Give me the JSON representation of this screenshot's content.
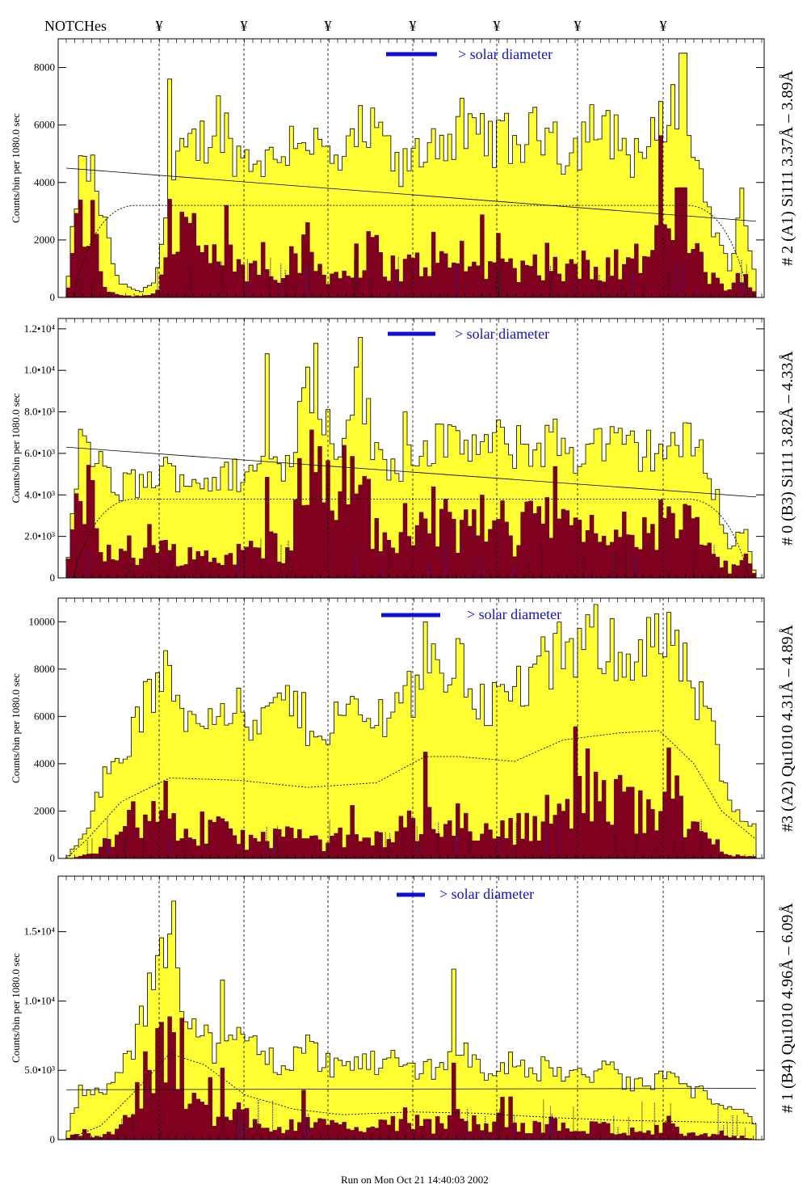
{
  "figure": {
    "notches_label": "NOTCHes",
    "notch_symbol": "¥",
    "footer": "Run on Mon Oct 21 14:40:03 2002",
    "colors": {
      "outer_fill": "#ffff33",
      "inner_fill": "#800020",
      "solar_bar": "#1010d0",
      "axis": "#000000"
    }
  },
  "chart_data": [
    {
      "type": "bar",
      "label": "# 2 (A1) Si111  3.37Å – 3.89Å",
      "ylabel": "Counts/bin per  1080.0 sec",
      "solar_label": "> solar diameter",
      "ylim": [
        0,
        9000
      ],
      "yticks": [
        {
          "v": 0,
          "t": "0"
        },
        {
          "v": 2000,
          "t": "2000"
        },
        {
          "v": 4000,
          "t": "4000"
        },
        {
          "v": 6000,
          "t": "6000"
        },
        {
          "v": 8000,
          "t": "8000"
        }
      ],
      "outer_profile": [
        0,
        4400,
        4500,
        2500,
        600,
        300,
        200,
        700,
        3200,
        4800,
        5300,
        5500,
        6400,
        5200,
        4800,
        5000,
        4700,
        5100,
        5800,
        5600,
        5000,
        4600,
        4800,
        5700,
        5600,
        5500,
        4200,
        4800,
        5100,
        5800,
        5400,
        5900,
        5300,
        5400,
        5600,
        5300,
        5500,
        5700,
        6300,
        4900,
        5200,
        6200,
        5500,
        5800,
        5000,
        5100,
        5400,
        6400,
        6800,
        5600,
        3600,
        2000,
        900,
        3700,
        300
      ],
      "inner_profile": [
        0,
        2700,
        2600,
        400,
        100,
        50,
        50,
        200,
        1400,
        2700,
        1900,
        1200,
        1400,
        1300,
        900,
        1100,
        900,
        1200,
        1600,
        1300,
        1100,
        800,
        600,
        1400,
        1600,
        1300,
        900,
        1100,
        1200,
        1700,
        900,
        1500,
        1000,
        1300,
        1100,
        1000,
        1200,
        1100,
        1500,
        800,
        1000,
        1400,
        1000,
        1100,
        1200,
        1400,
        1700,
        2400,
        2900,
        2000,
        700,
        500,
        300,
        1200,
        0
      ],
      "peaks": [
        {
          "x": 0.151,
          "v": 7600
        },
        {
          "x": 0.602,
          "v": 6400
        },
        {
          "x": 0.894,
          "v": 8500
        }
      ],
      "dashed_level": 3200,
      "solid_line": [
        4500,
        2650
      ]
    },
    {
      "type": "bar",
      "label": "# 0 (B3) Si111  3.82Å – 4.33Å",
      "ylabel": "Counts/bin per  1080.0 sec",
      "solar_label": "> solar diameter",
      "ylim": [
        0,
        12500
      ],
      "yticks": [
        {
          "v": 0,
          "t": "0"
        },
        {
          "v": 2000,
          "t": "2.0•10³"
        },
        {
          "v": 4000,
          "t": "4.0•10³"
        },
        {
          "v": 6000,
          "t": "6.0•10³"
        },
        {
          "v": 8000,
          "t": "8.0•10³"
        },
        {
          "v": 10000,
          "t": "1.0•10⁴"
        },
        {
          "v": 12000,
          "t": "1.2•10⁴"
        }
      ],
      "outer_profile": [
        0,
        6200,
        6400,
        4800,
        4200,
        4600,
        4500,
        4900,
        5100,
        5000,
        4700,
        4800,
        4600,
        5000,
        4900,
        5300,
        5600,
        5400,
        7200,
        9600,
        8000,
        6400,
        7700,
        10400,
        6000,
        5800,
        5400,
        6300,
        6200,
        6600,
        6300,
        6500,
        6400,
        6200,
        6600,
        6100,
        6500,
        6200,
        6800,
        6300,
        5900,
        6400,
        6600,
        6200,
        6400,
        6000,
        6300,
        6200,
        6500,
        6400,
        5900,
        3800,
        1200,
        2600,
        0
      ],
      "inner_profile": [
        0,
        5100,
        4800,
        1400,
        900,
        1100,
        1200,
        1400,
        1300,
        1200,
        1000,
        1100,
        900,
        1200,
        1100,
        1400,
        1800,
        1500,
        3600,
        5700,
        4200,
        2800,
        4400,
        6800,
        2000,
        1700,
        1500,
        2400,
        2500,
        3300,
        2100,
        2500,
        2200,
        1900,
        2600,
        2000,
        2900,
        3700,
        4200,
        3100,
        1800,
        2200,
        2400,
        2000,
        2300,
        1900,
        2600,
        2400,
        2800,
        2300,
        1700,
        700,
        200,
        1000,
        0
      ],
      "peaks": [
        {
          "x": 0.292,
          "v": 10800
        },
        {
          "x": 0.362,
          "v": 11300
        },
        {
          "x": 0.49,
          "v": 8000
        }
      ],
      "dashed_level": 3800,
      "solid_line": [
        6300,
        3900
      ]
    },
    {
      "type": "bar",
      "label": "#3 (A2) Qu1010  4.31Å – 4.89Å",
      "ylabel": "Counts/bin per   1080.0 sec",
      "solar_label": "> solar diameter",
      "ylim": [
        0,
        11000
      ],
      "yticks": [
        {
          "v": 0,
          "t": "0"
        },
        {
          "v": 2000,
          "t": "2000"
        },
        {
          "v": 4000,
          "t": "4000"
        },
        {
          "v": 6000,
          "t": "6000"
        },
        {
          "v": 8000,
          "t": "8000"
        },
        {
          "v": 10000,
          "t": "10000"
        }
      ],
      "outer_profile": [
        0,
        800,
        1800,
        3400,
        4300,
        5000,
        6300,
        7200,
        7600,
        6500,
        5800,
        6200,
        6800,
        6600,
        5600,
        5400,
        6100,
        6800,
        6300,
        5700,
        5400,
        5900,
        6200,
        6000,
        5700,
        6300,
        6800,
        7200,
        7500,
        7900,
        8200,
        8000,
        7200,
        6400,
        6700,
        7000,
        7400,
        7800,
        8300,
        8600,
        8900,
        9100,
        9300,
        9000,
        8700,
        8900,
        9200,
        8800,
        8200,
        7300,
        6000,
        4500,
        2000,
        1600,
        1400
      ],
      "inner_profile": [
        0,
        50,
        200,
        700,
        1200,
        1500,
        1800,
        1600,
        1400,
        1100,
        900,
        1000,
        1200,
        1100,
        800,
        700,
        900,
        1100,
        900,
        700,
        600,
        800,
        900,
        800,
        700,
        1000,
        1200,
        1300,
        1400,
        1500,
        1700,
        1600,
        1300,
        1000,
        1100,
        1200,
        1400,
        1600,
        1900,
        2100,
        2300,
        2400,
        2600,
        2400,
        2200,
        2300,
        2500,
        2200,
        1800,
        1300,
        900,
        600,
        200,
        100,
        50
      ],
      "peaks": [
        {
          "x": 0.523,
          "v": 10000
        },
        {
          "x": 0.757,
          "v": 10300
        },
        {
          "x": 0.874,
          "v": 10400
        }
      ],
      "dashed_level": 3500,
      "dashed_curve": [
        [
          0.0,
          0
        ],
        [
          0.03,
          800
        ],
        [
          0.08,
          2400
        ],
        [
          0.15,
          3400
        ],
        [
          0.25,
          3300
        ],
        [
          0.35,
          3000
        ],
        [
          0.45,
          3200
        ],
        [
          0.52,
          4300
        ],
        [
          0.57,
          4300
        ],
        [
          0.65,
          4100
        ],
        [
          0.72,
          5000
        ],
        [
          0.8,
          5300
        ],
        [
          0.86,
          5400
        ],
        [
          0.91,
          4000
        ],
        [
          0.95,
          2000
        ],
        [
          1.0,
          800
        ]
      ]
    },
    {
      "type": "bar",
      "label": "# 1 (B4) Qu1010 4.96Å – 6.09Å",
      "ylabel": "Counts/bin per   1080.0 sec",
      "solar_label": "> solar diameter",
      "ylim": [
        0,
        19000
      ],
      "yticks": [
        {
          "v": 0,
          "t": "0"
        },
        {
          "v": 5000,
          "t": "5.0•10³"
        },
        {
          "v": 10000,
          "t": "1.0•10⁴"
        },
        {
          "v": 15000,
          "t": "1.5•10⁴"
        }
      ],
      "outer_profile": [
        0,
        3500,
        3200,
        3400,
        4500,
        6200,
        8500,
        12500,
        15500,
        11000,
        8200,
        7200,
        6400,
        6900,
        7600,
        6600,
        5800,
        5300,
        6200,
        6800,
        5600,
        5400,
        5200,
        5800,
        5400,
        6100,
        5600,
        5000,
        5400,
        5100,
        5800,
        6400,
        5600,
        4800,
        5900,
        5300,
        4800,
        5100,
        5300,
        4700,
        4400,
        4900,
        5200,
        4600,
        4100,
        3800,
        4300,
        4700,
        4100,
        3600,
        3200,
        3000,
        2500,
        2200,
        800
      ],
      "inner_profile": [
        0,
        500,
        300,
        400,
        800,
        1800,
        3400,
        5200,
        6600,
        4800,
        2900,
        2000,
        1400,
        1700,
        2100,
        1500,
        1000,
        800,
        1300,
        1700,
        1000,
        900,
        800,
        1100,
        900,
        1200,
        1100,
        900,
        1000,
        900,
        1200,
        1600,
        1100,
        800,
        1500,
        1100,
        800,
        1000,
        1100,
        800,
        700,
        900,
        1000,
        700,
        600,
        500,
        700,
        900,
        600,
        400,
        300,
        250,
        200,
        100,
        0
      ],
      "peaks": [
        {
          "x": 0.155,
          "v": 17200
        },
        {
          "x": 0.226,
          "v": 11500
        },
        {
          "x": 0.56,
          "v": 12300
        }
      ],
      "dashed_curve": [
        [
          0.0,
          0
        ],
        [
          0.05,
          1000
        ],
        [
          0.1,
          3500
        ],
        [
          0.15,
          6200
        ],
        [
          0.2,
          5400
        ],
        [
          0.26,
          3200
        ],
        [
          0.33,
          2200
        ],
        [
          0.4,
          1800
        ],
        [
          0.5,
          2000
        ],
        [
          0.6,
          1900
        ],
        [
          0.7,
          1600
        ],
        [
          0.8,
          1400
        ],
        [
          0.9,
          1300
        ],
        [
          1.0,
          1200
        ]
      ],
      "solid_line": [
        3600,
        3700
      ]
    }
  ]
}
